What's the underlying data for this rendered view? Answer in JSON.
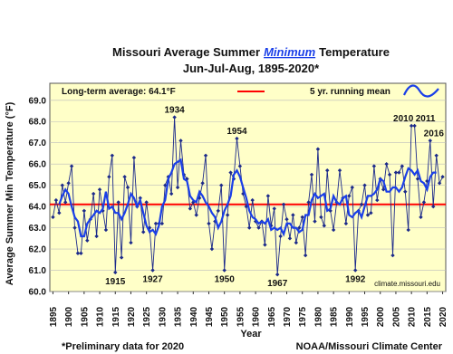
{
  "chart_data": {
    "type": "line",
    "title": [
      "Missouri Average Summer",
      "Minimum",
      "Temperature"
    ],
    "subtitle": "Jun-Jul-Aug, 1895-2020*",
    "xlabel": "Year",
    "ylabel": "Average Summer Min Temperature (°F)",
    "source": "climate.missouri.edu",
    "footnote": "*Preliminary data for 2020",
    "credit": "NOAA/Missouri Climate Center",
    "reference_line": {
      "label": "Long-term average: 64.1°F",
      "value": 64.1,
      "color": "#ff0000"
    },
    "annotations": [
      "1934",
      "1954",
      "2010",
      "2011",
      "2016",
      "1915",
      "1927",
      "1950",
      "1967",
      "1992"
    ],
    "x": [
      1895,
      1896,
      1897,
      1898,
      1899,
      1900,
      1901,
      1902,
      1903,
      1904,
      1905,
      1906,
      1907,
      1908,
      1909,
      1910,
      1911,
      1912,
      1913,
      1914,
      1915,
      1916,
      1917,
      1918,
      1919,
      1920,
      1921,
      1922,
      1923,
      1924,
      1925,
      1926,
      1927,
      1928,
      1929,
      1930,
      1931,
      1932,
      1933,
      1934,
      1935,
      1936,
      1937,
      1938,
      1939,
      1940,
      1941,
      1942,
      1943,
      1944,
      1945,
      1946,
      1947,
      1948,
      1949,
      1950,
      1951,
      1952,
      1953,
      1954,
      1955,
      1956,
      1957,
      1958,
      1959,
      1960,
      1961,
      1962,
      1963,
      1964,
      1965,
      1966,
      1967,
      1968,
      1969,
      1970,
      1971,
      1972,
      1973,
      1974,
      1975,
      1976,
      1977,
      1978,
      1979,
      1980,
      1981,
      1982,
      1983,
      1984,
      1985,
      1986,
      1987,
      1988,
      1989,
      1990,
      1991,
      1992,
      1993,
      1994,
      1995,
      1996,
      1997,
      1998,
      1999,
      2000,
      2001,
      2002,
      2003,
      2004,
      2005,
      2006,
      2007,
      2008,
      2009,
      2010,
      2011,
      2012,
      2013,
      2014,
      2015,
      2016,
      2017,
      2018,
      2019,
      2020
    ],
    "series": [
      {
        "color": "#1c2a8a",
        "markers": true,
        "values": [
          63.5,
          64.3,
          63.7,
          65.0,
          64.2,
          65.1,
          65.9,
          63.0,
          61.8,
          61.8,
          63.8,
          62.4,
          63.4,
          64.6,
          62.6,
          64.8,
          63.8,
          62.9,
          65.4,
          66.4,
          60.9,
          64.2,
          61.6,
          65.4,
          64.9,
          62.3,
          66.3,
          64.0,
          64.4,
          62.8,
          64.2,
          63.0,
          61.0,
          63.2,
          63.2,
          63.2,
          65.0,
          65.4,
          64.6,
          68.2,
          64.9,
          67.1,
          65.5,
          65.3,
          63.9,
          64.2,
          63.6,
          64.4,
          65.1,
          66.4,
          63.2,
          62.0,
          63.3,
          63.8,
          65.0,
          61.0,
          63.6,
          65.6,
          65.3,
          67.2,
          65.9,
          64.6,
          64.0,
          63.0,
          64.3,
          63.3,
          63.0,
          63.3,
          62.2,
          64.5,
          63.1,
          63.9,
          60.8,
          62.6,
          64.1,
          63.4,
          62.5,
          63.6,
          62.3,
          63.0,
          63.5,
          61.7,
          64.2,
          65.5,
          63.3,
          66.7,
          63.5,
          63.1,
          65.7,
          63.8,
          62.9,
          64.2,
          65.7,
          64.4,
          63.2,
          64.5,
          64.9,
          61.0,
          63.8,
          64.1,
          65.0,
          63.6,
          63.7,
          65.9,
          64.3,
          65.3,
          64.8,
          66.0,
          65.5,
          61.7,
          65.6,
          65.6,
          65.9,
          64.7,
          62.9,
          67.8,
          67.8,
          65.3,
          63.5,
          64.2,
          65.2,
          67.1,
          64.0,
          66.4,
          65.1,
          65.4
        ]
      },
      {
        "name": "5 yr. running mean",
        "color": "#1a3fe8",
        "markers": false,
        "values": [
          null,
          null,
          64.1,
          64.5,
          64.8,
          64.6,
          64.0,
          63.5,
          63.3,
          62.6,
          62.6,
          63.2,
          63.4,
          63.6,
          63.8,
          63.7,
          63.9,
          64.7,
          63.9,
          64.0,
          63.7,
          63.7,
          63.4,
          63.7,
          64.1,
          64.6,
          64.4,
          64.0,
          64.3,
          63.7,
          63.1,
          62.8,
          62.9,
          62.7,
          63.1,
          64.0,
          64.3,
          65.3,
          65.6,
          66.0,
          66.1,
          66.2,
          65.3,
          65.2,
          64.5,
          64.3,
          64.2,
          64.7,
          64.5,
          64.2,
          64.0,
          63.7,
          63.5,
          63.0,
          63.3,
          63.8,
          64.1,
          64.5,
          65.5,
          65.7,
          65.4,
          64.9,
          64.4,
          63.8,
          63.5,
          63.4,
          63.2,
          63.3,
          63.2,
          63.4,
          62.9,
          63.0,
          62.9,
          63.0,
          62.7,
          63.2,
          63.2,
          63.0,
          63.0,
          62.8,
          62.9,
          63.6,
          63.6,
          64.3,
          64.6,
          64.4,
          64.5,
          64.6,
          63.8,
          63.9,
          64.5,
          64.2,
          64.1,
          64.4,
          64.5,
          63.6,
          63.5,
          63.7,
          63.8,
          63.5,
          64.0,
          64.5,
          64.5,
          64.6,
          64.8,
          65.3,
          65.2,
          64.7,
          64.7,
          64.9,
          64.9,
          64.7,
          64.9,
          65.4,
          65.8,
          65.7,
          65.5,
          65.7,
          65.2,
          65.1,
          64.8,
          65.4,
          65.6,
          65.6,
          null,
          null
        ]
      }
    ],
    "xlim": [
      1894,
      2021
    ],
    "xticks": [
      1895,
      1900,
      1905,
      1910,
      1915,
      1920,
      1925,
      1930,
      1935,
      1940,
      1945,
      1950,
      1955,
      1960,
      1965,
      1970,
      1975,
      1980,
      1985,
      1990,
      1995,
      2000,
      2005,
      2010,
      2015,
      2020
    ],
    "ylim": [
      60,
      69.8
    ],
    "yticks": [
      {
        "value": 60,
        "label": "60.0"
      },
      {
        "value": 61,
        "label": "61.0"
      },
      {
        "value": 62,
        "label": "62.0"
      },
      {
        "value": 63,
        "label": "63.0"
      },
      {
        "value": 64,
        "label": "64.0"
      },
      {
        "value": 65,
        "label": "65.0"
      },
      {
        "value": 66,
        "label": "66.0"
      },
      {
        "value": 67,
        "label": "67.0"
      },
      {
        "value": 68,
        "label": "68.0"
      },
      {
        "value": 69,
        "label": "69.0"
      }
    ],
    "grid": true
  }
}
